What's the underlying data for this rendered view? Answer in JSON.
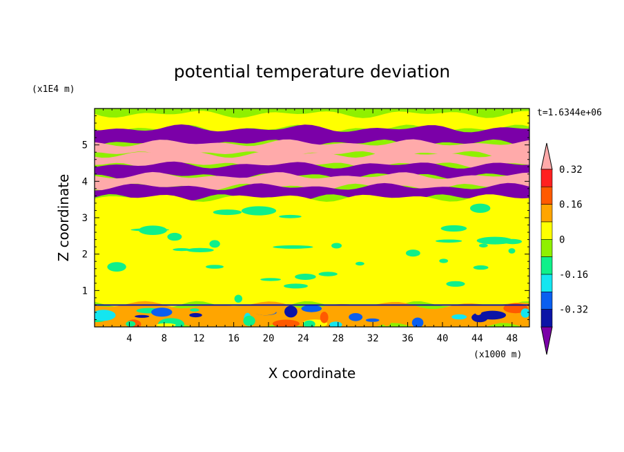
{
  "chart_data": {
    "type": "heatmap",
    "title": "potential temperature deviation",
    "xlabel": "X coordinate",
    "ylabel": "Z coordinate",
    "x_unit": "(x1000 m)",
    "y_unit": "(x1E4 m)",
    "time_label": "t=1.6344e+06",
    "xlim": [
      0,
      50
    ],
    "ylim": [
      0,
      6
    ],
    "x_ticks": [
      "4",
      "8",
      "12",
      "16",
      "20",
      "24",
      "28",
      "32",
      "36",
      "40",
      "44",
      "48"
    ],
    "y_ticks": [
      "1",
      "2",
      "3",
      "4",
      "5"
    ],
    "colorbar": {
      "levels": [
        -0.4,
        -0.32,
        -0.24,
        -0.16,
        -0.08,
        0,
        0.08,
        0.16,
        0.24,
        0.32,
        0.4
      ],
      "labels": [
        "0.32",
        "0.16",
        "0",
        "-0.16",
        "-0.32"
      ],
      "colors": [
        "#7b00a8",
        "#0b14a6",
        "#0a5ff0",
        "#14e6f0",
        "#0ff08a",
        "#8ff000",
        "#ffff00",
        "#ffa500",
        "#ff5a00",
        "#ff2020",
        "#ffaaaa"
      ],
      "extend": "both"
    },
    "grid": false,
    "bands": [
      {
        "z": [
          5.45,
          5.85
        ],
        "value": 0.05
      },
      {
        "z": [
          5.05,
          5.45
        ],
        "value": -0.45
      },
      {
        "z": [
          4.75,
          5.05
        ],
        "value": 0.45
      },
      {
        "z": [
          4.45,
          4.75
        ],
        "value": 0.45
      },
      {
        "z": [
          4.15,
          4.45
        ],
        "value": -0.45
      },
      {
        "z": [
          3.85,
          4.15
        ],
        "value": 0.45
      },
      {
        "z": [
          3.55,
          3.85
        ],
        "value": -0.45
      },
      {
        "z": [
          0.6,
          3.55
        ],
        "value": 0.02
      },
      {
        "z": [
          0.0,
          0.6
        ],
        "value": 0.1
      }
    ]
  }
}
